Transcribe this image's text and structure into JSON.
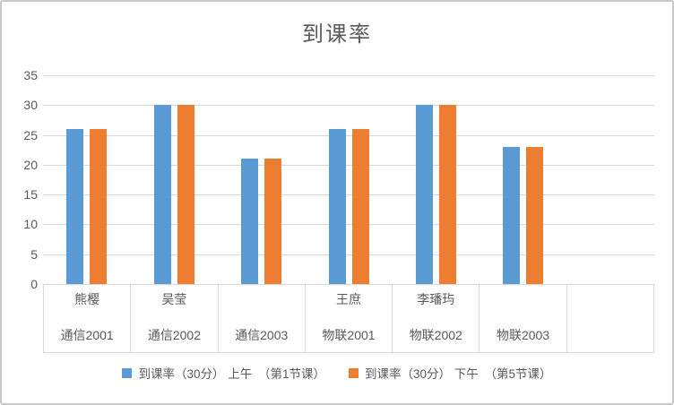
{
  "window": {
    "background": "#FFFFFF",
    "frame_border_color": "#C9C9C9"
  },
  "chart_data": {
    "type": "bar",
    "title": "到课率",
    "title_color": "#595959",
    "xlabel": "",
    "ylabel": "",
    "ylim": [
      0,
      35
    ],
    "ytick_interval": 5,
    "yticks": [
      35,
      30,
      25,
      20,
      15,
      10,
      5,
      0
    ],
    "grid": true,
    "gridline_color": "#D8D8D8",
    "axis_text_color": "#595959",
    "legend_position": "bottom",
    "categories": [
      {
        "name": "熊樱",
        "group": "通信2001"
      },
      {
        "name": "吴莹",
        "group": "通信2002"
      },
      {
        "name": "",
        "group": "通信2003"
      },
      {
        "name": "王庶",
        "group": "物联2001"
      },
      {
        "name": "李璠玙",
        "group": "物联2002"
      },
      {
        "name": "",
        "group": "物联2003"
      },
      {
        "name": "",
        "group": ""
      }
    ],
    "series": [
      {
        "name": "到课率（30分） 上午　（第1节课）",
        "color": "#5B9BD5",
        "values": [
          26,
          30,
          21,
          26,
          30,
          23,
          null
        ]
      },
      {
        "name": "到课率（30分） 下午　（第5节课）",
        "color": "#ED7D31",
        "values": [
          26,
          30,
          21,
          26,
          30,
          23,
          null
        ]
      }
    ]
  }
}
